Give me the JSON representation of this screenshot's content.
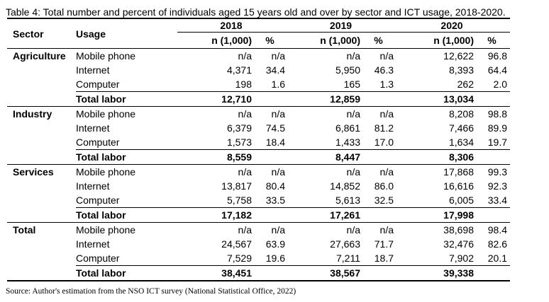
{
  "caption": "Table 4: Total number and percent of individuals aged 15 years old and over by sector and ICT usage, 2018-2020.",
  "headers": {
    "sector": "Sector",
    "usage": "Usage",
    "years": [
      "2018",
      "2019",
      "2020"
    ],
    "n_label": "n (1,000)",
    "pct_label": "%"
  },
  "groups": [
    {
      "sector": "Agriculture",
      "rows": [
        [
          "Mobile phone",
          "n/a",
          "n/a",
          "n/a",
          "n/a",
          "12,622",
          "96.8"
        ],
        [
          "Internet",
          "4,371",
          "34.4",
          "5,950",
          "46.3",
          "8,393",
          "64.4"
        ],
        [
          "Computer",
          "198",
          "1.6",
          "165",
          "1.3",
          "262",
          "2.0"
        ]
      ],
      "total": [
        "Total labor",
        "12,710",
        "12,859",
        "13,034"
      ]
    },
    {
      "sector": "Industry",
      "rows": [
        [
          "Mobile phone",
          "n/a",
          "n/a",
          "n/a",
          "n/a",
          "8,208",
          "98.8"
        ],
        [
          "Internet",
          "6,379",
          "74.5",
          "6,861",
          "81.2",
          "7,466",
          "89.9"
        ],
        [
          "Computer",
          "1,573",
          "18.4",
          "1,433",
          "17.0",
          "1,634",
          "19.7"
        ]
      ],
      "total": [
        "Total labor",
        "8,559",
        "8,447",
        "8,306"
      ]
    },
    {
      "sector": "Services",
      "rows": [
        [
          "Mobile phone",
          "n/a",
          "n/a",
          "n/a",
          "n/a",
          "17,868",
          "99.3"
        ],
        [
          "Internet",
          "13,817",
          "80.4",
          "14,852",
          "86.0",
          "16,616",
          "92.3"
        ],
        [
          "Computer",
          "5,758",
          "33.5",
          "5,613",
          "32.5",
          "6,005",
          "33.4"
        ]
      ],
      "total": [
        "Total labor",
        "17,182",
        "17,261",
        "17,998"
      ]
    },
    {
      "sector": "Total",
      "rows": [
        [
          "Mobile phone",
          "n/a",
          "n/a",
          "n/a",
          "n/a",
          "38,698",
          "98.4"
        ],
        [
          "Internet",
          "24,567",
          "63.9",
          "27,663",
          "71.7",
          "32,476",
          "82.6"
        ],
        [
          "Computer",
          "7,529",
          "19.6",
          "7,211",
          "18.7",
          "7,902",
          "20.1"
        ]
      ],
      "total": [
        "Total labor",
        "38,451",
        "38,567",
        "39,338"
      ]
    }
  ],
  "source": "Source: Author's estimation from the NSO ICT survey (National Statistical Office, 2022)"
}
